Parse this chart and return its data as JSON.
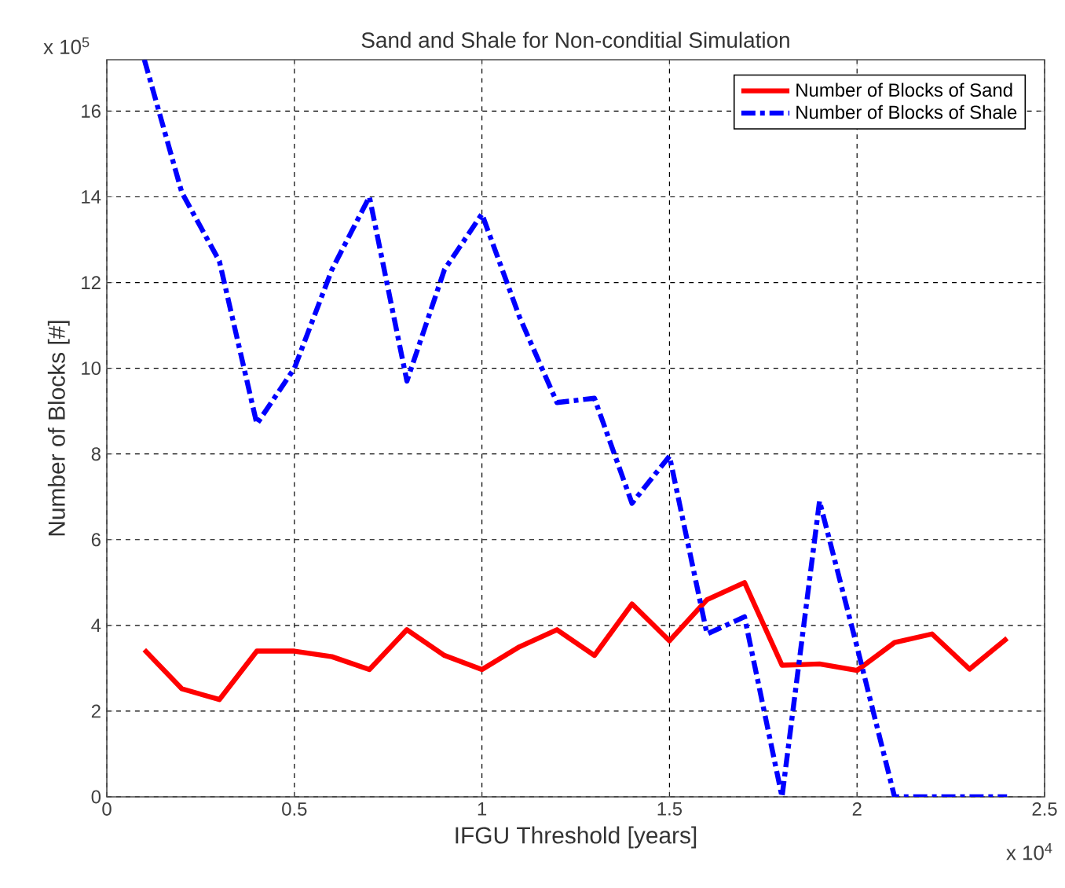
{
  "chart_data": {
    "type": "line",
    "title": "Sand and Shale for Non-conditial Simulation",
    "xlabel": "IFGU Threshold [years]",
    "ylabel": "Number of Blocks [#]",
    "annotations": [
      "x 10$^{5}$",
      "x 10$^{4}$"
    ],
    "x": [
      0.1,
      0.2,
      0.3,
      0.4,
      0.5,
      0.6,
      0.7,
      0.8,
      0.9,
      1.0,
      1.1,
      1.2,
      1.3,
      1.4,
      1.5,
      1.6,
      1.7,
      1.8,
      1.9,
      2.0,
      2.1,
      2.2,
      2.3,
      2.4
    ],
    "series": [
      {
        "name": "Number of Blocks of Sand",
        "color": "#ff0000",
        "line_style": "solid",
        "values": [
          3.43,
          2.52,
          2.27,
          3.4,
          3.4,
          3.27,
          2.97,
          3.9,
          3.3,
          2.97,
          3.5,
          3.9,
          3.3,
          4.5,
          3.64,
          4.6,
          5.0,
          3.07,
          3.1,
          2.95,
          3.6,
          3.8,
          2.98,
          3.7
        ]
      },
      {
        "name": "Number of Blocks of Shale",
        "color": "#0000ff",
        "line_style": "dashdot",
        "values": [
          17.2,
          14.1,
          12.5,
          8.7,
          10.0,
          12.3,
          14.0,
          9.7,
          12.3,
          13.6,
          11.2,
          9.2,
          9.3,
          6.85,
          7.95,
          3.8,
          4.2,
          0,
          6.9,
          3.5,
          0,
          0,
          0,
          0
        ]
      }
    ],
    "xlim": [
      0,
      2.5
    ],
    "ylim": [
      0,
      17.2
    ],
    "xticks": [
      0,
      0.5,
      1,
      1.5,
      2,
      2.5
    ],
    "yticks": [
      0,
      2,
      4,
      6,
      8,
      10,
      12,
      14,
      16
    ],
    "grid": true,
    "legend": "top right",
    "marker": "none"
  }
}
